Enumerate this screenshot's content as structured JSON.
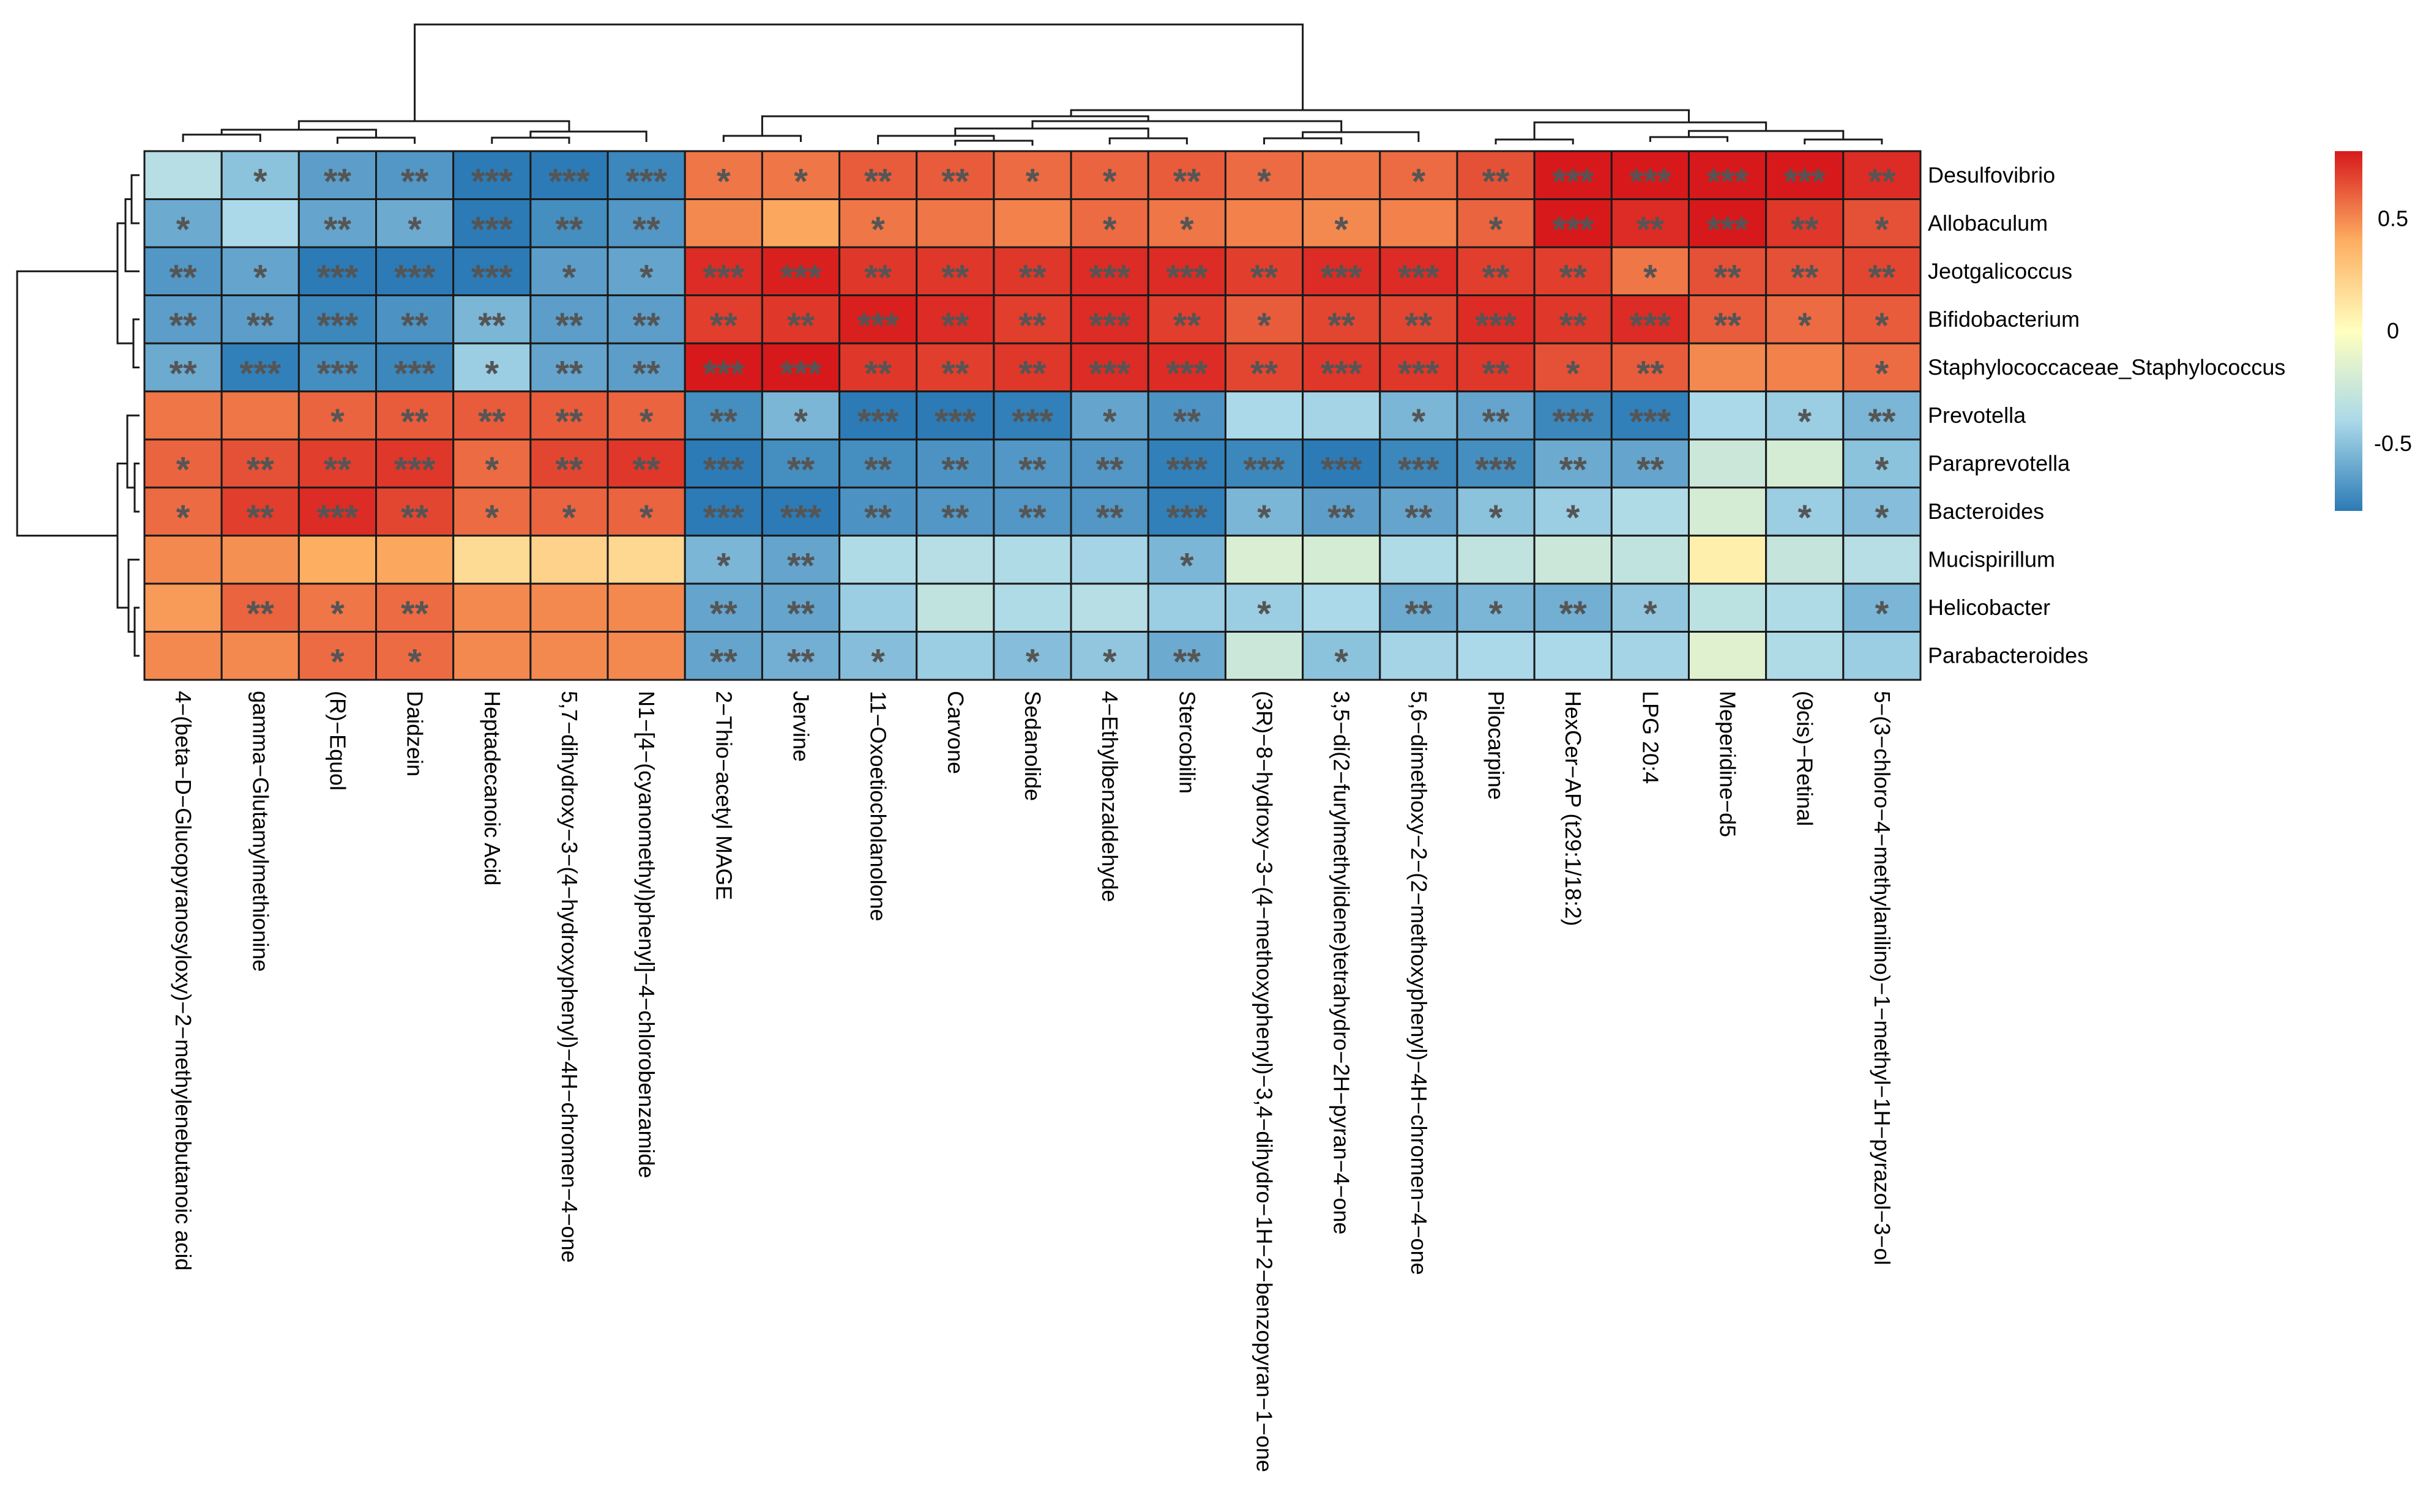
{
  "chart_data": {
    "type": "heatmap",
    "title": "",
    "rows": [
      "Desulfovibrio",
      "Allobaculum",
      "Jeotgalicoccus",
      "Bifidobacterium",
      "Staphylococcaceae_Staphylococcus",
      "Prevotella",
      "Paraprevotella",
      "Bacteroides",
      "Mucispirillum",
      "Helicobacter",
      "Parabacteroides"
    ],
    "columns": [
      "4−(beta−D−Glucopyranosyloxy)−2−methylenebutanoic acid",
      "gamma−Glutamylmethionine",
      "(R)−Equol",
      "Daidzein",
      "Heptadecanoic Acid",
      "5,7−dihydroxy−3−(4−hydroxyphenyl)−4H−chromen−4−one",
      "N1−[4−(cyanomethyl)phenyl]−4−chlorobenzamide",
      "2−Thio−acetyl MAGE",
      "Jervine",
      "11−Oxoetiocholanolone",
      "Carvone",
      "Sedanolide",
      "4−Ethylbenzaldehyde",
      "Stercobilin",
      "(3R)−8−hydroxy−3−(4−methoxyphenyl)−3,4−dihydro−1H−2−benzopyran−1−one",
      "3,5−di(2−furylmethylidene)tetrahydro−2H−pyran−4−one",
      "5,6−dimethoxy−2−(2−methoxyphenyl)−4H−chromen−4−one",
      "Pilocarpine",
      "HexCer−AP (t29:1/18:2)",
      "LPG 20:4",
      "Meperidine−d5",
      "(9cis)−Retinal",
      "5−(3−chloro−4−methylanilino)−1−methyl−1H−pyrazol−3−ol"
    ],
    "values": [
      [
        -0.35,
        -0.5,
        -0.65,
        -0.68,
        -0.82,
        -0.82,
        -0.75,
        0.55,
        0.55,
        0.62,
        0.62,
        0.58,
        0.6,
        0.62,
        0.58,
        0.55,
        0.58,
        0.65,
        0.85,
        0.8,
        0.8,
        0.8,
        0.75
      ],
      [
        -0.6,
        -0.4,
        -0.62,
        -0.6,
        -0.8,
        -0.72,
        -0.68,
        0.5,
        0.42,
        0.55,
        0.55,
        0.52,
        0.58,
        0.55,
        0.52,
        0.5,
        0.52,
        0.6,
        0.85,
        0.75,
        0.8,
        0.72,
        0.65
      ],
      [
        -0.68,
        -0.62,
        -0.8,
        -0.82,
        -0.82,
        -0.65,
        -0.62,
        0.75,
        0.78,
        0.72,
        0.72,
        0.72,
        0.75,
        0.75,
        0.7,
        0.75,
        0.75,
        0.7,
        0.7,
        0.55,
        0.65,
        0.65,
        0.68
      ],
      [
        -0.65,
        -0.65,
        -0.75,
        -0.7,
        -0.55,
        -0.65,
        -0.65,
        0.7,
        0.72,
        0.78,
        0.75,
        0.7,
        0.75,
        0.7,
        0.62,
        0.68,
        0.68,
        0.75,
        0.72,
        0.75,
        0.62,
        0.58,
        0.62
      ],
      [
        -0.6,
        -0.78,
        -0.72,
        -0.75,
        -0.45,
        -0.62,
        -0.65,
        0.8,
        0.82,
        0.72,
        0.7,
        0.72,
        0.75,
        0.75,
        0.68,
        0.72,
        0.72,
        0.72,
        0.65,
        0.62,
        0.5,
        0.52,
        0.58
      ],
      [
        0.55,
        0.55,
        0.6,
        0.62,
        0.62,
        0.62,
        0.6,
        -0.72,
        -0.55,
        -0.82,
        -0.82,
        -0.78,
        -0.62,
        -0.7,
        -0.4,
        -0.42,
        -0.55,
        -0.62,
        -0.75,
        -0.78,
        -0.4,
        -0.45,
        -0.55
      ],
      [
        0.6,
        0.65,
        0.7,
        0.72,
        0.58,
        0.68,
        0.72,
        -0.82,
        -0.72,
        -0.72,
        -0.7,
        -0.68,
        -0.68,
        -0.78,
        -0.75,
        -0.82,
        -0.75,
        -0.72,
        -0.6,
        -0.62,
        -0.25,
        -0.2,
        -0.5
      ],
      [
        0.58,
        0.7,
        0.75,
        0.68,
        0.58,
        0.6,
        0.6,
        -0.82,
        -0.8,
        -0.7,
        -0.68,
        -0.68,
        -0.68,
        -0.78,
        -0.55,
        -0.65,
        -0.62,
        -0.5,
        -0.45,
        -0.38,
        -0.2,
        -0.45,
        -0.52
      ],
      [
        0.5,
        0.48,
        0.4,
        0.42,
        0.18,
        0.22,
        0.2,
        -0.55,
        -0.62,
        -0.38,
        -0.35,
        -0.38,
        -0.42,
        -0.55,
        -0.18,
        -0.2,
        -0.38,
        -0.3,
        -0.25,
        -0.3,
        0.08,
        -0.28,
        -0.35
      ],
      [
        0.45,
        0.6,
        0.55,
        0.58,
        0.5,
        0.5,
        0.5,
        -0.62,
        -0.62,
        -0.45,
        -0.3,
        -0.38,
        -0.35,
        -0.45,
        -0.45,
        -0.4,
        -0.6,
        -0.55,
        -0.58,
        -0.48,
        -0.32,
        -0.38,
        -0.55
      ],
      [
        0.5,
        0.5,
        0.58,
        0.58,
        0.5,
        0.5,
        0.5,
        -0.62,
        -0.58,
        -0.52,
        -0.45,
        -0.52,
        -0.48,
        -0.6,
        -0.25,
        -0.5,
        -0.42,
        -0.4,
        -0.4,
        -0.42,
        -0.15,
        -0.38,
        -0.45
      ]
    ],
    "significance": [
      [
        "",
        "*",
        "**",
        "**",
        "***",
        "***",
        "***",
        "*",
        "*",
        "**",
        "**",
        "*",
        "*",
        "**",
        "*",
        "",
        "*",
        "**",
        "***",
        "***",
        "***",
        "***",
        "**"
      ],
      [
        "*",
        "",
        "**",
        "*",
        "***",
        "**",
        "**",
        "",
        "",
        "*",
        "",
        "",
        "*",
        "*",
        "",
        "*",
        "",
        "*",
        "***",
        "**",
        "***",
        "**",
        "*"
      ],
      [
        "**",
        "*",
        "***",
        "***",
        "***",
        "*",
        "*",
        "***",
        "***",
        "**",
        "**",
        "**",
        "***",
        "***",
        "**",
        "***",
        "***",
        "**",
        "**",
        "*",
        "**",
        "**",
        "**"
      ],
      [
        "**",
        "**",
        "***",
        "**",
        "**",
        "**",
        "**",
        "**",
        "**",
        "***",
        "**",
        "**",
        "***",
        "**",
        "*",
        "**",
        "**",
        "***",
        "**",
        "***",
        "**",
        "*",
        "*"
      ],
      [
        "**",
        "***",
        "***",
        "***",
        "*",
        "**",
        "**",
        "***",
        "***",
        "**",
        "**",
        "**",
        "***",
        "***",
        "**",
        "***",
        "***",
        "**",
        "*",
        "**",
        "",
        "",
        "*"
      ],
      [
        "",
        "",
        "*",
        "**",
        "**",
        "**",
        "*",
        "**",
        "*",
        "***",
        "***",
        "***",
        "*",
        "**",
        "",
        "",
        "*",
        "**",
        "***",
        "***",
        "",
        "*",
        "**"
      ],
      [
        "*",
        "**",
        "**",
        "***",
        "*",
        "**",
        "**",
        "***",
        "**",
        "**",
        "**",
        "**",
        "**",
        "***",
        "***",
        "***",
        "***",
        "***",
        "**",
        "**",
        "",
        "",
        "*"
      ],
      [
        "*",
        "**",
        "***",
        "**",
        "*",
        "*",
        "*",
        "***",
        "***",
        "**",
        "**",
        "**",
        "**",
        "***",
        "*",
        "**",
        "**",
        "*",
        "*",
        "",
        "",
        "*",
        "*"
      ],
      [
        "",
        "",
        "",
        "",
        "",
        "",
        "",
        "*",
        "**",
        "",
        "",
        "",
        "",
        "*",
        "",
        "",
        "",
        "",
        "",
        "",
        "",
        "",
        ""
      ],
      [
        "",
        "**",
        "*",
        "**",
        "",
        "",
        "",
        "**",
        "**",
        "",
        "",
        "",
        "",
        "",
        "*",
        "",
        "**",
        "*",
        "**",
        "*",
        "",
        "",
        "*"
      ],
      [
        "",
        "",
        "*",
        "*",
        "",
        "",
        "",
        "**",
        "**",
        "*",
        "",
        "*",
        "*",
        "**",
        "",
        "*",
        "",
        "",
        "",
        "",
        "",
        "",
        ""
      ]
    ],
    "color_scale": {
      "min": -0.8,
      "max": 0.8,
      "low_color": "#2c7bb6",
      "mid_color": "#ffffbf",
      "high_color": "#d7191c",
      "ticks": [
        0.5,
        0,
        -0.5
      ],
      "tick_labels": [
        "0.5",
        "0",
        "-0.5"
      ]
    },
    "legend_position": "right",
    "row_clusters": [
      "top-group",
      "bottom-group"
    ],
    "column_clusters": [
      "left-group",
      "right-group"
    ]
  }
}
